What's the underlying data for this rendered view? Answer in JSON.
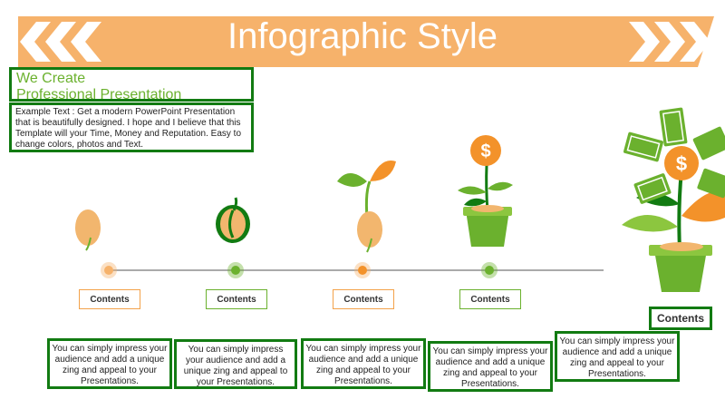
{
  "header": {
    "title": "Infographic Style"
  },
  "intro": {
    "heading_line1": "We Create",
    "heading_line2": "Professional Presentation",
    "description": "Example Text : Get a modern PowerPoint  Presentation that is beautifully designed. I hope and I believe that this Template will your Time, Money and Reputation. Easy to change colors, photos and Text."
  },
  "stages": [
    {
      "label": "Contents",
      "text": "You can simply impress your audience and add a unique zing and appeal to your Presentations."
    },
    {
      "label": "Contents",
      "text": "You can simply impress your audience and add a unique zing and appeal to your Presentations."
    },
    {
      "label": "Contents",
      "text": "You can simply impress your audience and add a unique zing and appeal to your Presentations."
    },
    {
      "label": "Contents",
      "text": "You can simply impress your audience and add a unique zing and appeal to your Presentations."
    },
    {
      "label": "Contents",
      "text": "You can simply impress your audience and add a unique zing and appeal to your Presentations."
    }
  ],
  "icons": {
    "dollar": "$"
  },
  "colors": {
    "orange": "#f6b26b",
    "orange_dark": "#f3922a",
    "green": "#6bb12e",
    "green_dark": "#127b12",
    "seed": "#f2b66e"
  }
}
